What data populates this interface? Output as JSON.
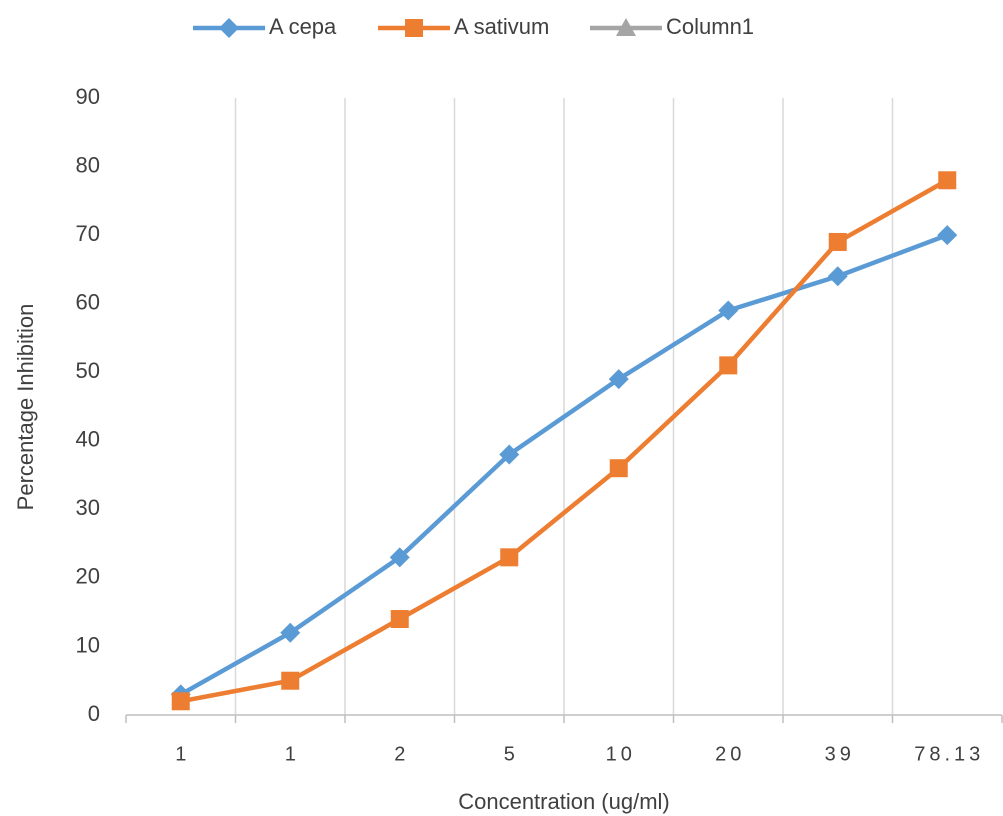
{
  "chart_data": {
    "type": "line",
    "x_label": "Concentration (ug/ml)",
    "y_label": "Percentage Inhibition",
    "categories": [
      "1",
      "1",
      "2",
      "5",
      "10",
      "20",
      "39",
      "78.13"
    ],
    "series": [
      {
        "name": "A cepa",
        "color": "#5b9bd5",
        "marker": "diamond",
        "values": [
          3,
          12,
          23,
          38,
          49,
          59,
          64,
          70
        ]
      },
      {
        "name": "A sativum",
        "color": "#ed7d31",
        "marker": "square",
        "values": [
          2,
          5,
          14,
          23,
          36,
          51,
          69,
          78
        ]
      },
      {
        "name": "Column1",
        "color": "#a5a5a5",
        "marker": "triangle",
        "values": [
          null,
          null,
          null,
          null,
          null,
          null,
          null,
          null
        ]
      }
    ],
    "ylim": [
      0,
      90
    ],
    "yticks": [
      0,
      10,
      20,
      30,
      40,
      50,
      60,
      70,
      80,
      90
    ],
    "grid": "x",
    "legend": "top"
  }
}
